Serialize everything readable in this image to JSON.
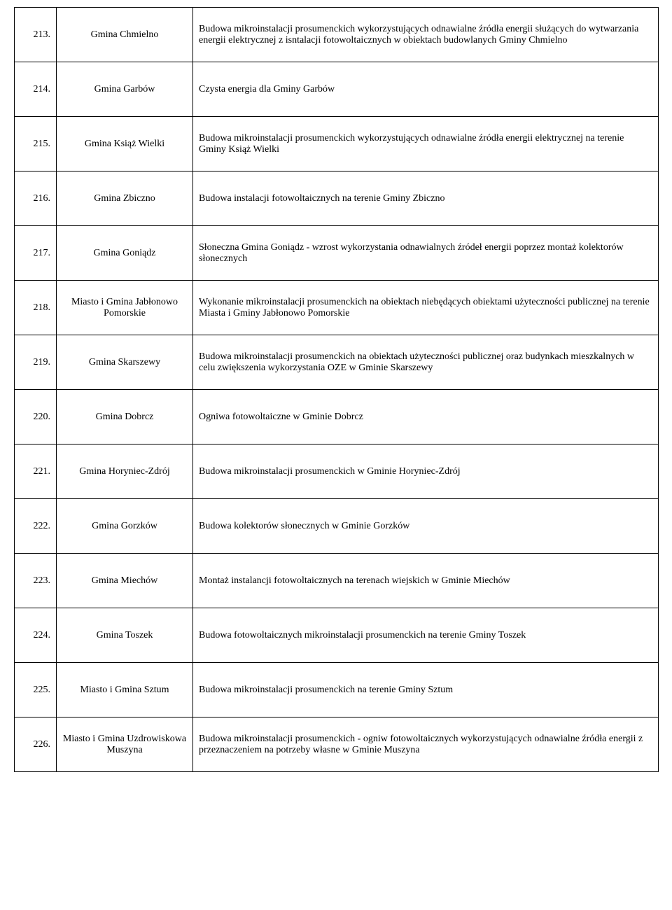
{
  "rows": [
    {
      "num": "213.",
      "name": "Gmina Chmielno",
      "desc": "Budowa mikroinstalacji prosumenckich wykorzystujących odnawialne źródła energii służących do wytwarzania energii elektrycznej z isntalacji fotowoltaicznych w obiektach budowlanych Gminy Chmielno"
    },
    {
      "num": "214.",
      "name": "Gmina Garbów",
      "desc": "Czysta energia dla Gminy Garbów"
    },
    {
      "num": "215.",
      "name": "Gmina Książ Wielki",
      "desc": "Budowa mikroinstalacji prosumenckich wykorzystujących odnawialne źródła energii elektrycznej na terenie Gminy Książ Wielki"
    },
    {
      "num": "216.",
      "name": "Gmina Zbiczno",
      "desc": "Budowa instalacji fotowoltaicznych na terenie Gminy Zbiczno"
    },
    {
      "num": "217.",
      "name": "Gmina Goniądz",
      "desc": "Słoneczna Gmina Goniądz  - wzrost wykorzystania odnawialnych źródeł energii poprzez montaż kolektorów słonecznych"
    },
    {
      "num": "218.",
      "name": "Miasto i Gmina Jabłonowo Pomorskie",
      "desc": "Wykonanie mikroinstalacji prosumenckich na obiektach niebędących obiektami użyteczności publicznej na terenie Miasta i Gminy Jabłonowo Pomorskie"
    },
    {
      "num": "219.",
      "name": "Gmina Skarszewy",
      "desc": "Budowa mikroinstalacji prosumenckich na obiektach użyteczności publicznej oraz budynkach mieszkalnych w celu zwiększenia wykorzystania OZE w Gminie Skarszewy"
    },
    {
      "num": "220.",
      "name": "Gmina Dobrcz",
      "desc": "Ogniwa fotowoltaiczne w Gminie Dobrcz"
    },
    {
      "num": "221.",
      "name": "Gmina Horyniec-Zdrój",
      "desc": "Budowa mikroinstalacji prosumenckich w Gminie Horyniec-Zdrój"
    },
    {
      "num": "222.",
      "name": "Gmina Gorzków",
      "desc": "Budowa kolektorów słonecznych w Gminie Gorzków"
    },
    {
      "num": "223.",
      "name": "Gmina Miechów",
      "desc": "Montaż instalancji fotowoltaicznych na terenach wiejskich w Gminie Miechów"
    },
    {
      "num": "224.",
      "name": "Gmina Toszek",
      "desc": "Budowa fotowoltaicznych mikroinstalacji prosumenckich na terenie Gminy Toszek"
    },
    {
      "num": "225.",
      "name": "Miasto i Gmina Sztum",
      "desc": "Budowa mikroinstalacji prosumenckich na terenie Gminy Sztum"
    },
    {
      "num": "226.",
      "name": "Miasto i Gmina Uzdrowiskowa Muszyna",
      "desc": "Budowa mikroinstalacji prosumenckich - ogniw fotowoltaicznych wykorzystujących odnawialne źródła energii z przeznaczeniem na potrzeby własne w Gminie Muszyna"
    }
  ]
}
